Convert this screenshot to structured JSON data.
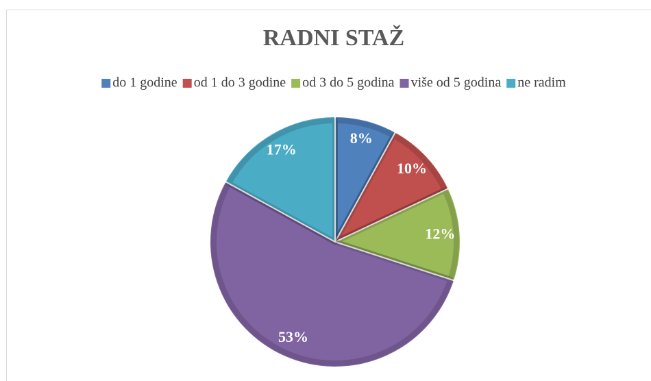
{
  "chart_data": {
    "type": "pie",
    "title": "RADNI STAŽ",
    "categories": [
      "do 1 godine",
      "od 1 do 3 godine",
      "od 3 do 5 godina",
      "više od 5 godina",
      "ne radim"
    ],
    "values": [
      8,
      10,
      12,
      53,
      17
    ],
    "value_labels": [
      "8%",
      "10%",
      "12%",
      "53%",
      "17%"
    ],
    "colors": [
      "#4f81bd",
      "#c0504d",
      "#9bbb59",
      "#8064a2",
      "#4bacc6"
    ],
    "legend": "top"
  }
}
